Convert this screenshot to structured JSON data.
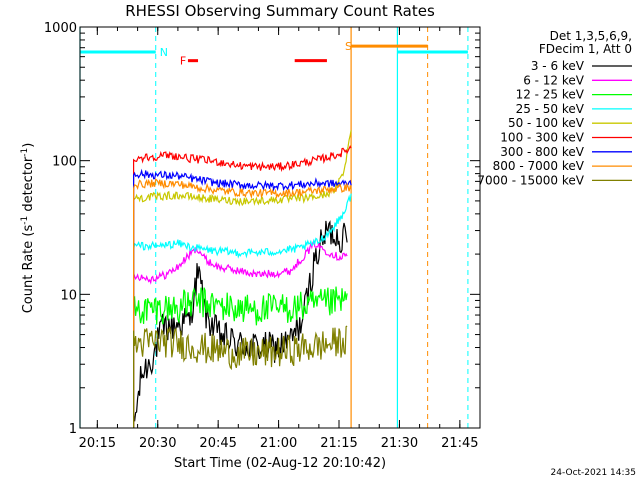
{
  "chart_data": {
    "type": "line",
    "title": "RHESSI Observing Summary Count Rates",
    "xlabel": "Start Time (02-Aug-12 20:10:42)",
    "ylabel": "Count Rate (s⁻¹ detector⁻¹)",
    "ylabel_main": "Count Rate (s",
    "ylabel_sup1": "-1",
    "ylabel_mid": " detector",
    "ylabel_sup2": "-1",
    "ylabel_end": ")",
    "y_scale": "log",
    "ylim": [
      1,
      1000
    ],
    "xlim": [
      "20:10:42",
      "21:50:00"
    ],
    "x_ticks": [
      "20:15",
      "20:30",
      "20:45",
      "21:00",
      "21:15",
      "21:30",
      "21:45"
    ],
    "y_ticks": [
      "1",
      "10",
      "100",
      "1000"
    ],
    "legend_header": [
      "Det 1,3,5,6,9,",
      "FDecim 1, Att 0"
    ],
    "legend_position": "right",
    "footer_date": "24-Oct-2021 14:35",
    "data_start": "20:24:00",
    "data_end": "21:18:00",
    "series": [
      {
        "name": "3 - 6 keV",
        "color": "#000000",
        "points": [
          [
            "20:24",
            1.0
          ],
          [
            "20:26",
            2.5
          ],
          [
            "20:29",
            3.5
          ],
          [
            "20:31",
            5.5
          ],
          [
            "20:35",
            6.0
          ],
          [
            "20:38",
            6.5
          ],
          [
            "20:40",
            15.0
          ],
          [
            "20:42",
            7.0
          ],
          [
            "20:45",
            5.0
          ],
          [
            "20:50",
            4.2
          ],
          [
            "20:55",
            4.0
          ],
          [
            "21:00",
            4.0
          ],
          [
            "21:03",
            4.5
          ],
          [
            "21:06",
            6.5
          ],
          [
            "21:09",
            18.0
          ],
          [
            "21:12",
            30.0
          ],
          [
            "21:15",
            27.0
          ],
          [
            "21:17",
            26.0
          ]
        ]
      },
      {
        "name": "6 - 12 keV",
        "color": "#ff00ff",
        "points": [
          [
            "20:24",
            14.0
          ],
          [
            "20:28",
            13.0
          ],
          [
            "20:32",
            14.0
          ],
          [
            "20:35",
            16.0
          ],
          [
            "20:38",
            20.0
          ],
          [
            "20:40",
            22.0
          ],
          [
            "20:42",
            18.0
          ],
          [
            "20:45",
            16.0
          ],
          [
            "20:50",
            15.0
          ],
          [
            "20:55",
            14.0
          ],
          [
            "21:00",
            14.5
          ],
          [
            "21:03",
            15.0
          ],
          [
            "21:06",
            19.0
          ],
          [
            "21:09",
            24.0
          ],
          [
            "21:12",
            21.0
          ],
          [
            "21:15",
            19.0
          ],
          [
            "21:17",
            20.0
          ]
        ]
      },
      {
        "name": "12 - 25 keV",
        "color": "#00ff00",
        "points": [
          [
            "20:24",
            7.5
          ],
          [
            "20:30",
            7.8
          ],
          [
            "20:35",
            8.0
          ],
          [
            "20:40",
            8.8
          ],
          [
            "20:45",
            8.2
          ],
          [
            "20:50",
            7.8
          ],
          [
            "20:55",
            7.7
          ],
          [
            "21:00",
            7.8
          ],
          [
            "21:05",
            8.0
          ],
          [
            "21:10",
            8.3
          ],
          [
            "21:15",
            8.8
          ],
          [
            "21:17",
            9.0
          ]
        ]
      },
      {
        "name": "25 - 50 keV",
        "color": "#00ffff",
        "points": [
          [
            "20:24",
            23.0
          ],
          [
            "20:30",
            23.0
          ],
          [
            "20:35",
            24.0
          ],
          [
            "20:40",
            22.0
          ],
          [
            "20:45",
            21.0
          ],
          [
            "20:50",
            20.5
          ],
          [
            "20:55",
            20.5
          ],
          [
            "21:00",
            21.0
          ],
          [
            "21:05",
            22.0
          ],
          [
            "21:10",
            25.0
          ],
          [
            "21:13",
            30.0
          ],
          [
            "21:16",
            40.0
          ],
          [
            "21:18",
            55.0
          ]
        ]
      },
      {
        "name": "50 - 100 keV",
        "color": "#c8c800",
        "points": [
          [
            "20:24",
            52.0
          ],
          [
            "20:30",
            54.0
          ],
          [
            "20:35",
            55.0
          ],
          [
            "20:40",
            53.0
          ],
          [
            "20:45",
            51.0
          ],
          [
            "20:50",
            50.0
          ],
          [
            "20:55",
            50.0
          ],
          [
            "21:00",
            51.0
          ],
          [
            "21:05",
            52.0
          ],
          [
            "21:10",
            54.0
          ],
          [
            "21:14",
            60.0
          ],
          [
            "21:16",
            80.0
          ],
          [
            "21:18",
            165.0
          ]
        ]
      },
      {
        "name": "100 - 300 keV",
        "color": "#ff0000",
        "points": [
          [
            "20:24",
            104.0
          ],
          [
            "20:30",
            108.0
          ],
          [
            "20:33",
            110.0
          ],
          [
            "20:38",
            104.0
          ],
          [
            "20:45",
            98.0
          ],
          [
            "20:50",
            92.0
          ],
          [
            "20:55",
            90.0
          ],
          [
            "21:00",
            90.0
          ],
          [
            "21:05",
            95.0
          ],
          [
            "21:10",
            102.0
          ],
          [
            "21:15",
            112.0
          ],
          [
            "21:18",
            125.0
          ]
        ]
      },
      {
        "name": "300 - 800 keV",
        "color": "#0000ff",
        "points": [
          [
            "20:24",
            80.0
          ],
          [
            "20:30",
            78.0
          ],
          [
            "20:35",
            77.0
          ],
          [
            "20:40",
            72.0
          ],
          [
            "20:45",
            68.0
          ],
          [
            "20:50",
            66.0
          ],
          [
            "20:55",
            65.0
          ],
          [
            "21:00",
            65.0
          ],
          [
            "21:05",
            66.0
          ],
          [
            "21:10",
            68.0
          ],
          [
            "21:15",
            67.0
          ],
          [
            "21:18",
            68.0
          ]
        ]
      },
      {
        "name": "800 - 7000 keV",
        "color": "#ff8c00",
        "points": [
          [
            "20:24",
            66.0
          ],
          [
            "20:30",
            68.0
          ],
          [
            "20:35",
            67.0
          ],
          [
            "20:40",
            63.0
          ],
          [
            "20:45",
            60.0
          ],
          [
            "20:50",
            58.0
          ],
          [
            "20:55",
            57.0
          ],
          [
            "21:00",
            57.0
          ],
          [
            "21:05",
            58.0
          ],
          [
            "21:10",
            60.0
          ],
          [
            "21:15",
            62.0
          ],
          [
            "21:18",
            63.0
          ]
        ]
      },
      {
        "name": "7000 - 15000 keV",
        "color": "#808000",
        "points": [
          [
            "20:24",
            4.2
          ],
          [
            "20:30",
            4.5
          ],
          [
            "20:35",
            4.3
          ],
          [
            "20:40",
            4.0
          ],
          [
            "20:45",
            3.8
          ],
          [
            "20:50",
            3.6
          ],
          [
            "20:55",
            3.6
          ],
          [
            "21:00",
            3.7
          ],
          [
            "21:05",
            3.9
          ],
          [
            "21:10",
            4.1
          ],
          [
            "21:15",
            4.4
          ],
          [
            "21:17",
            4.5
          ]
        ]
      }
    ],
    "attenuator_band": {
      "color": "#00ffff",
      "y_value": 650,
      "segments": [
        [
          "20:10:42",
          "20:29:30"
        ],
        [
          "21:29:30",
          "21:47:00"
        ]
      ],
      "solid_lines": [
        "20:10:42",
        "21:29:30"
      ],
      "dashed_lines": [
        "20:29:30",
        "21:47:00"
      ],
      "label": "N",
      "label_time": "20:30:30"
    },
    "flare_markers": {
      "color": "#ff0000",
      "y_value": 560,
      "label": "F",
      "label_time": "20:35:30",
      "segments": [
        [
          "20:37:30",
          "20:40:00"
        ],
        [
          "21:04:00",
          "21:12:00"
        ]
      ]
    },
    "saa_markers": {
      "color": "#ff8c00",
      "y_value": 720,
      "label": "S",
      "label_time": "21:16:30",
      "segments": [
        [
          "21:18:00",
          "21:37:00"
        ]
      ],
      "solid_lines": [
        "21:18:00"
      ],
      "dashed_lines": [
        "21:37:00"
      ]
    }
  }
}
